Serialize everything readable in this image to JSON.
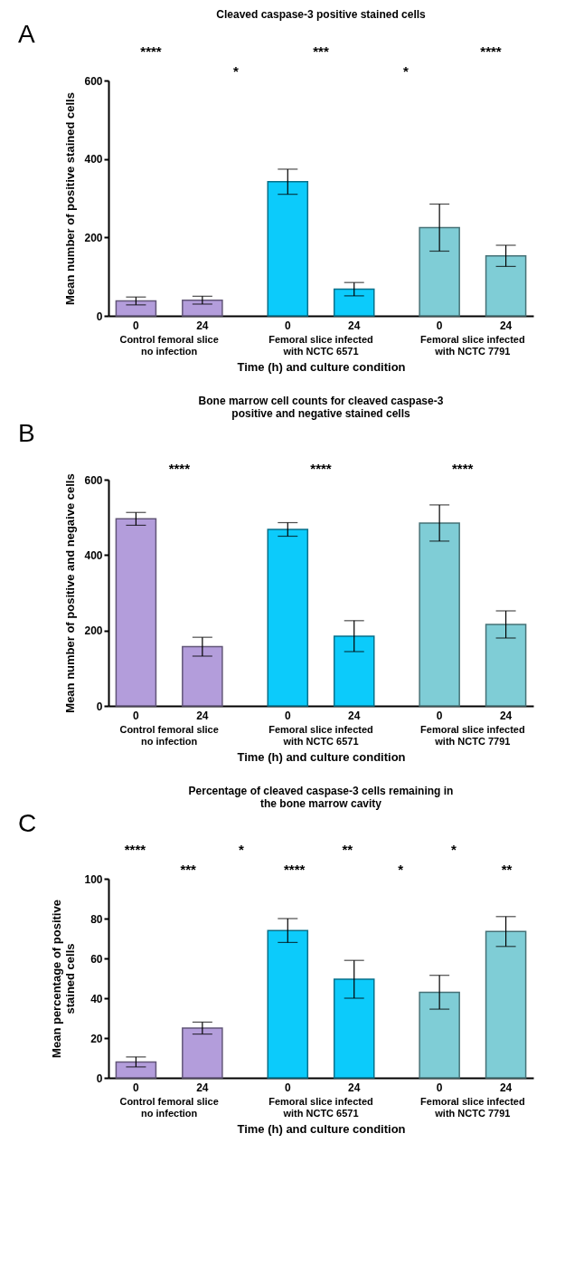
{
  "chart_data": [
    {
      "type": "bar",
      "title": "Cleaved caspase-3 positive stained cells",
      "xlabel": "Time (h) and culture condition",
      "ylabel": "Mean number of positive stained cells",
      "categories": [
        "0",
        "24",
        "0",
        "24",
        "0",
        "24"
      ],
      "values": [
        38,
        40,
        342,
        68,
        225,
        153
      ],
      "errors": [
        10,
        10,
        32,
        17,
        60,
        27
      ],
      "colors": [
        "#b39ddb",
        "#b39ddb",
        "#0ccbfb",
        "#0ccbfb",
        "#7fcdd6",
        "#7fcdd6"
      ],
      "ylim": [
        0,
        600
      ],
      "yticks": [
        0,
        200,
        400,
        600
      ],
      "annotations": [
        "A",
        "Control femoral slice no infection",
        "Femoral slice infected with NCTC 6571",
        "Femoral slice infected with NCTC 7791",
        "****",
        "*",
        "***",
        "*",
        "****"
      ]
    },
    {
      "type": "bar",
      "title": "Bone marrow cell counts for cleaved caspase-3 positive and negative stained cells",
      "xlabel": "Time (h) and culture condition",
      "ylabel": "Mean number of positive and negaive cells",
      "categories": [
        "0",
        "24",
        "0",
        "24",
        "0",
        "24"
      ],
      "values": [
        496,
        157,
        468,
        185,
        485,
        216
      ],
      "errors": [
        17,
        25,
        18,
        41,
        48,
        36
      ],
      "colors": [
        "#b39ddb",
        "#b39ddb",
        "#0ccbfb",
        "#0ccbfb",
        "#7fcdd6",
        "#7fcdd6"
      ],
      "ylim": [
        0,
        600
      ],
      "yticks": [
        0,
        200,
        400,
        600
      ],
      "annotations": [
        "B",
        "Control femoral slice no infection",
        "Femoral slice infected with NCTC 6571",
        "Femoral slice infected with NCTC 7791",
        "****",
        "****",
        "****"
      ]
    },
    {
      "type": "bar",
      "title": "Percentage of cleaved caspase-3 cells remaining in the bone marrow cavity",
      "xlabel": "Time (h) and culture condition",
      "ylabel": "Mean percentage of positive stained cells",
      "categories": [
        "0",
        "24",
        "0",
        "24",
        "0",
        "24"
      ],
      "values": [
        8,
        25,
        74,
        49.5,
        43,
        73.5
      ],
      "errors": [
        2.5,
        3,
        6,
        9.5,
        8.5,
        7.5
      ],
      "colors": [
        "#b39ddb",
        "#b39ddb",
        "#0ccbfb",
        "#0ccbfb",
        "#7fcdd6",
        "#7fcdd6"
      ],
      "ylim": [
        0,
        100
      ],
      "yticks": [
        0,
        20,
        40,
        60,
        80,
        100
      ],
      "annotations": [
        "C",
        "Control femoral slice no infection",
        "Femoral slice infected with NCTC 6571",
        "Femoral slice infected with NCTC 7791",
        "****",
        "***",
        "*",
        "****",
        "**",
        "*",
        "*",
        "**"
      ]
    }
  ]
}
